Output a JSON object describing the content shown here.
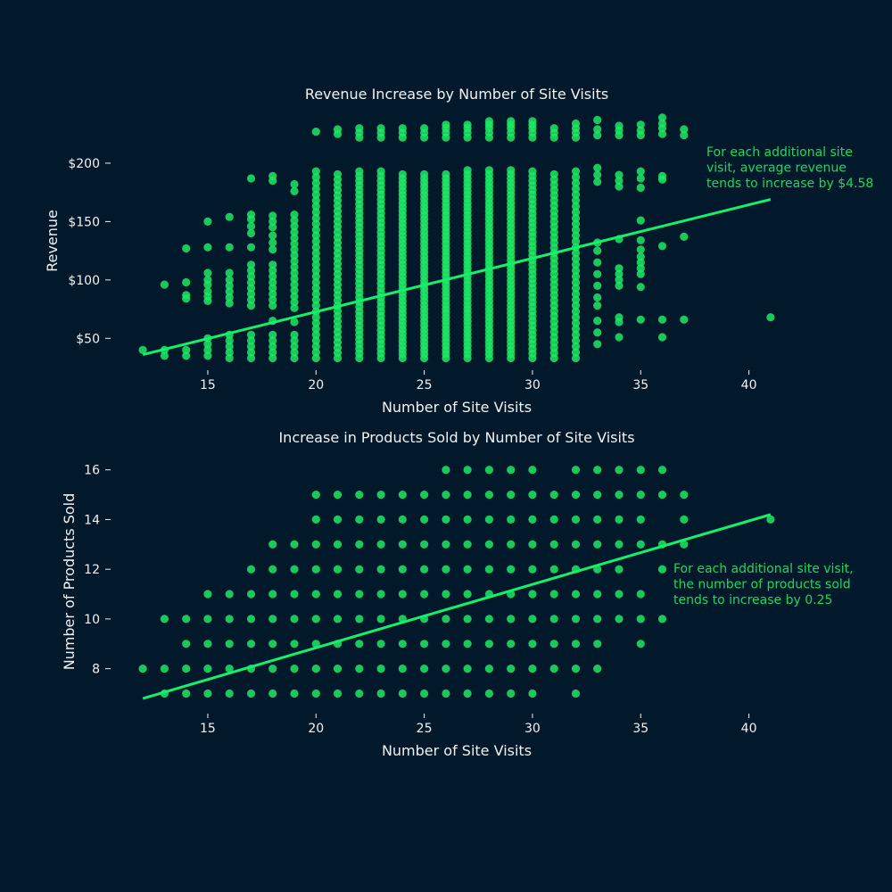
{
  "colors": {
    "background": "#02192b",
    "text": "#f2f2f2",
    "points": "#1ee864",
    "trend_line": "#14f06a",
    "annotation": "#1ed760"
  },
  "chart_data": [
    {
      "type": "scatter",
      "title": "Revenue Increase by Number of Site Visits",
      "xlabel": "Number of Site Visits",
      "ylabel": "Revenue",
      "xlim": [
        11.5,
        41.5
      ],
      "ylim": [
        25,
        242
      ],
      "x_ticks": [
        15,
        20,
        25,
        30,
        35,
        40
      ],
      "y_ticks": [
        50,
        100,
        150,
        200
      ],
      "y_tick_labels": [
        "$50",
        "$100",
        "$150",
        "$200"
      ],
      "grid": false,
      "trend": {
        "x": [
          12,
          41
        ],
        "y": [
          36,
          169
        ],
        "slope": 4.58
      },
      "annotation": [
        "For each additional site",
        "visit, average revenue",
        "tends to increase by $4.58"
      ],
      "columns": [
        {
          "x": 12,
          "y": [
            40
          ]
        },
        {
          "x": 13,
          "y": [
            35,
            40,
            96
          ]
        },
        {
          "x": 14,
          "y": [
            35,
            40,
            84,
            87,
            98,
            127
          ]
        },
        {
          "x": 15,
          "y": [
            35,
            40,
            45,
            50,
            82,
            86,
            90,
            96,
            100,
            106,
            128,
            150
          ]
        },
        {
          "x": 16,
          "y": [
            33,
            38,
            43,
            48,
            53,
            80,
            85,
            90,
            95,
            100,
            106,
            128,
            154
          ]
        },
        {
          "x": 17,
          "y": [
            33,
            38,
            43,
            48,
            53,
            78,
            83,
            88,
            93,
            98,
            103,
            108,
            113,
            128,
            140,
            146,
            152,
            156,
            187
          ]
        },
        {
          "x": 18,
          "y": [
            33,
            38,
            43,
            48,
            53,
            65,
            78,
            83,
            88,
            93,
            98,
            103,
            108,
            113,
            126,
            132,
            138,
            145,
            150,
            155,
            185,
            189
          ]
        },
        {
          "x": 19,
          "y": [
            33,
            38,
            43,
            48,
            53,
            64,
            76,
            81,
            86,
            91,
            96,
            101,
            106,
            111,
            116,
            121,
            126,
            131,
            136,
            141,
            146,
            151,
            156,
            176,
            182
          ]
        },
        {
          "x": 20,
          "range": [
            33,
            193,
            5
          ],
          "extra": [
            227
          ]
        },
        {
          "x": 21,
          "range": [
            33,
            193,
            4.5
          ],
          "extra": [
            225,
            229
          ]
        },
        {
          "x": 22,
          "range": [
            33,
            193,
            4
          ],
          "extra": [
            222,
            226,
            230
          ]
        },
        {
          "x": 23,
          "range": [
            33,
            193,
            4
          ],
          "extra": [
            222,
            226,
            230
          ]
        },
        {
          "x": 24,
          "range": [
            33,
            193,
            3.5
          ],
          "extra": [
            222,
            226,
            230
          ]
        },
        {
          "x": 25,
          "range": [
            33,
            193,
            3.5
          ],
          "extra": [
            222,
            226,
            230
          ]
        },
        {
          "x": 26,
          "range": [
            33,
            193,
            3.5
          ],
          "extra": [
            222,
            226,
            230,
            233
          ]
        },
        {
          "x": 27,
          "range": [
            33,
            196,
            3.5
          ],
          "extra": [
            222,
            226,
            230,
            233
          ]
        },
        {
          "x": 28,
          "range": [
            33,
            196,
            3.5
          ],
          "extra": [
            222,
            226,
            230,
            233,
            236
          ]
        },
        {
          "x": 29,
          "range": [
            33,
            196,
            3.5
          ],
          "extra": [
            222,
            226,
            230,
            233,
            236
          ]
        },
        {
          "x": 30,
          "range": [
            33,
            196,
            4
          ],
          "extra": [
            222,
            226,
            230,
            233,
            236
          ]
        },
        {
          "x": 31,
          "range": [
            33,
            193,
            4.5
          ],
          "extra": [
            222,
            226,
            230
          ]
        },
        {
          "x": 32,
          "range": [
            33,
            196,
            5
          ],
          "extra": [
            222,
            226,
            230,
            234
          ]
        },
        {
          "x": 33,
          "y": [
            45,
            55,
            65,
            78,
            85,
            95,
            105,
            115,
            125,
            132,
            184,
            190,
            196,
            224,
            229,
            237
          ]
        },
        {
          "x": 34,
          "y": [
            51,
            64,
            68,
            95,
            100,
            105,
            110,
            135,
            180,
            185,
            190,
            224,
            228,
            232
          ]
        },
        {
          "x": 35,
          "y": [
            66,
            94,
            105,
            110,
            115,
            120,
            126,
            134,
            151,
            179,
            187,
            193,
            224,
            228,
            233
          ]
        },
        {
          "x": 36,
          "y": [
            51,
            66,
            129,
            186,
            189,
            225,
            230,
            234,
            239
          ]
        },
        {
          "x": 37,
          "y": [
            66,
            137,
            224,
            229
          ]
        },
        {
          "x": 41,
          "y": [
            68
          ]
        }
      ]
    },
    {
      "type": "scatter",
      "title": "Increase in Products Sold by Number of Site Visits",
      "xlabel": "Number of Site Visits",
      "ylabel": "Number of Products Sold",
      "xlim": [
        11.5,
        41.5
      ],
      "ylim": [
        6.3,
        16.6
      ],
      "x_ticks": [
        15,
        20,
        25,
        30,
        35,
        40
      ],
      "y_ticks": [
        8,
        10,
        12,
        14,
        16
      ],
      "y_tick_labels": [
        "8",
        "10",
        "12",
        "14",
        "16"
      ],
      "grid": false,
      "trend": {
        "x": [
          12,
          41
        ],
        "y": [
          6.8,
          14.2
        ],
        "slope": 0.25
      },
      "annotation": [
        "For each additional site visit,",
        "the number of products sold",
        "tends to increase by 0.25"
      ],
      "columns": [
        {
          "x": 12,
          "y": [
            8
          ]
        },
        {
          "x": 13,
          "y": [
            7,
            8,
            10
          ]
        },
        {
          "x": 14,
          "y": [
            7,
            8,
            9,
            10
          ]
        },
        {
          "x": 15,
          "y": [
            7,
            8,
            9,
            10,
            11
          ]
        },
        {
          "x": 16,
          "y": [
            7,
            8,
            9,
            10,
            11
          ]
        },
        {
          "x": 17,
          "y": [
            7,
            8,
            9,
            10,
            11,
            12
          ]
        },
        {
          "x": 18,
          "y": [
            7,
            8,
            9,
            10,
            11,
            12,
            13
          ]
        },
        {
          "x": 19,
          "y": [
            7,
            8,
            9,
            10,
            11,
            12,
            13
          ]
        },
        {
          "x": 20,
          "y": [
            7,
            8,
            9,
            10,
            11,
            12,
            13,
            14,
            15
          ]
        },
        {
          "x": 21,
          "y": [
            7,
            8,
            9,
            10,
            11,
            12,
            13,
            14,
            15
          ]
        },
        {
          "x": 22,
          "y": [
            7,
            8,
            9,
            10,
            11,
            12,
            13,
            14,
            15
          ]
        },
        {
          "x": 23,
          "y": [
            7,
            8,
            9,
            10,
            11,
            12,
            13,
            14,
            15
          ]
        },
        {
          "x": 24,
          "y": [
            7,
            8,
            9,
            10,
            11,
            12,
            13,
            14,
            15
          ]
        },
        {
          "x": 25,
          "y": [
            7,
            8,
            9,
            10,
            11,
            12,
            13,
            14,
            15
          ]
        },
        {
          "x": 26,
          "y": [
            7,
            8,
            9,
            10,
            11,
            12,
            13,
            14,
            15,
            16
          ]
        },
        {
          "x": 27,
          "y": [
            7,
            8,
            9,
            10,
            11,
            12,
            13,
            14,
            15,
            16
          ]
        },
        {
          "x": 28,
          "y": [
            7,
            8,
            9,
            10,
            11,
            12,
            13,
            14,
            15,
            16
          ]
        },
        {
          "x": 29,
          "y": [
            7,
            8,
            9,
            10,
            11,
            12,
            13,
            14,
            15,
            16
          ]
        },
        {
          "x": 30,
          "y": [
            7,
            8,
            9,
            10,
            11,
            12,
            13,
            14,
            15,
            16
          ]
        },
        {
          "x": 31,
          "y": [
            8,
            9,
            10,
            11,
            12,
            13,
            14,
            15
          ]
        },
        {
          "x": 32,
          "y": [
            7,
            8,
            9,
            10,
            11,
            12,
            13,
            14,
            15,
            16
          ]
        },
        {
          "x": 33,
          "y": [
            8,
            9,
            10,
            11,
            12,
            13,
            14,
            15,
            16
          ]
        },
        {
          "x": 34,
          "y": [
            10,
            11,
            12,
            13,
            14,
            15,
            16
          ]
        },
        {
          "x": 35,
          "y": [
            9,
            10,
            11,
            13,
            14,
            15,
            16
          ]
        },
        {
          "x": 36,
          "y": [
            10,
            12,
            13,
            15,
            16
          ]
        },
        {
          "x": 37,
          "y": [
            13,
            14,
            15
          ]
        },
        {
          "x": 41,
          "y": [
            14
          ]
        }
      ]
    }
  ]
}
